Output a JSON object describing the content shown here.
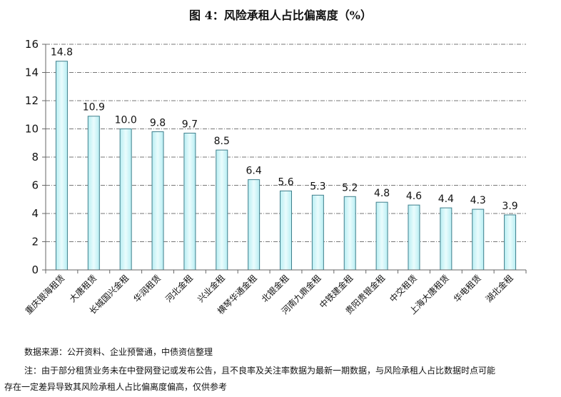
{
  "chart_data": {
    "type": "bar",
    "title": "图 4：风险承租人占比偏离度（%）",
    "categories": [
      "重庆银海租赁",
      "大唐租赁",
      "长城国兴金租",
      "华润租赁",
      "河北金租",
      "兴业金租",
      "横琴华通金租",
      "北银金租",
      "河南九鼎金租",
      "中铁建金租",
      "贵阳贵银金租",
      "中交租赁",
      "上海大唐租赁",
      "华电租赁",
      "湖北金租"
    ],
    "values": [
      14.8,
      10.9,
      10.0,
      9.8,
      9.7,
      8.5,
      6.4,
      5.6,
      5.3,
      5.2,
      4.8,
      4.6,
      4.4,
      4.3,
      3.9
    ],
    "value_labels": [
      "14.8",
      "10.9",
      "10.0",
      "9.8",
      "9.7",
      "8.5",
      "6.4",
      "5.6",
      "5.3",
      "5.2",
      "4.8",
      "4.6",
      "4.4",
      "4.3",
      "3.9"
    ],
    "ylim": [
      0,
      16
    ],
    "yticks": [
      0,
      2,
      4,
      6,
      8,
      10,
      12,
      14,
      16
    ],
    "grid": true,
    "bar_color": "#d2f6f9",
    "bar_edge_color": "#3f7f8c"
  },
  "notes": {
    "source": "数据来源：公开资料、企业预警通，中债资信整理",
    "footnote_line1": "注：由于部分租赁业务未在中登网登记或发布公告，且不良率及关注率数据为最新一期数据，与风险承租人占比数据时点可能",
    "footnote_line2": "存在一定差异导致其风险承租人占比偏离度偏高，仅供参考"
  }
}
